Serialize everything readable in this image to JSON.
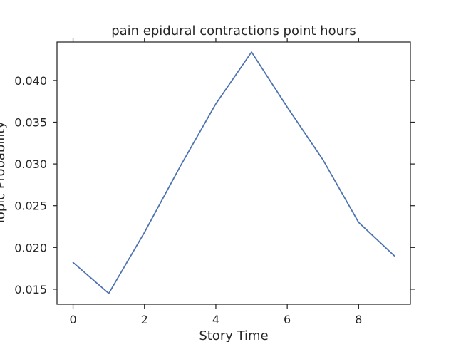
{
  "chart_data": {
    "type": "line",
    "title": "pain epidural contractions point hours",
    "xlabel": "Story Time",
    "ylabel": "Topic Probability",
    "x": [
      0,
      1,
      2,
      3,
      4,
      5,
      6,
      7,
      8,
      9
    ],
    "series": [
      {
        "values": [
          0.0182,
          0.0145,
          0.0218,
          0.0297,
          0.0372,
          0.0434,
          0.0368,
          0.0305,
          0.023,
          0.019
        ],
        "color": "#4c72b0"
      }
    ],
    "xlim": [
      -0.45,
      9.45
    ],
    "ylim": [
      0.0132,
      0.0446
    ],
    "xticks": [
      0,
      2,
      4,
      6,
      8
    ],
    "xtick_labels": [
      "0",
      "2",
      "4",
      "6",
      "8"
    ],
    "yticks": [
      0.015,
      0.02,
      0.025,
      0.03,
      0.035,
      0.04
    ],
    "ytick_labels": [
      "0.015",
      "0.020",
      "0.025",
      "0.030",
      "0.035",
      "0.040"
    ],
    "grid": false,
    "legend": "none"
  }
}
